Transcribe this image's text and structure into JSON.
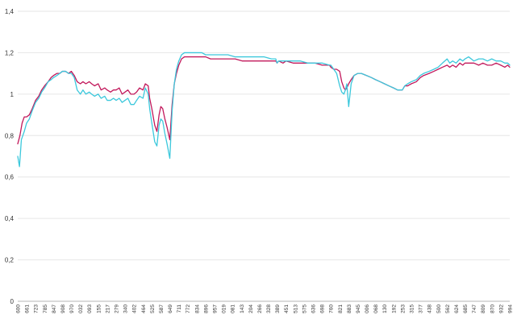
{
  "chart_data": {
    "type": "line",
    "title": "",
    "xlabel": "",
    "ylabel": "",
    "ylim": [
      0,
      1.4
    ],
    "y_ticks": [
      "0",
      "0,2",
      "0,4",
      "0,6",
      "0,8",
      "1",
      "1,2",
      "1,4"
    ],
    "x_ticks": [
      "600",
      "661",
      "723",
      "785",
      "847",
      "908",
      "970",
      "032",
      "093",
      "155",
      "217",
      "279",
      "340",
      "402",
      "464",
      "525",
      "587",
      "649",
      "711",
      "772",
      "834",
      "896",
      "957",
      "019",
      "081",
      "143",
      "204",
      "266",
      "328",
      "389",
      "451",
      "513",
      "575",
      "636",
      "698",
      "760",
      "821",
      "883",
      "945",
      "006",
      "068",
      "130",
      "192",
      "253",
      "315",
      "377",
      "438",
      "500",
      "562",
      "624",
      "685",
      "747",
      "809",
      "870",
      "932",
      "994"
    ],
    "grid": true,
    "legend": "none",
    "series": [
      {
        "color": "#c2185b",
        "x": [
          600,
          615,
          630,
          645,
          661,
          680,
          700,
          723,
          745,
          765,
          785,
          810,
          830,
          847,
          870,
          890,
          908,
          930,
          950,
          970,
          990,
          1010,
          1032,
          1050,
          1070,
          1093,
          1110,
          1130,
          1155,
          1175,
          1200,
          1217,
          1240,
          1260,
          1279,
          1300,
          1320,
          1340,
          1360,
          1380,
          1402,
          1420,
          1440,
          1464,
          1480,
          1500,
          1510,
          1525,
          1545,
          1560,
          1575,
          1587,
          1600,
          1615,
          1630,
          1649,
          1665,
          1680,
          1695,
          1711,
          1730,
          1750,
          1772,
          1800,
          1834,
          1870,
          1896,
          1930,
          1957,
          2000,
          2050,
          2100,
          2150,
          2204,
          2250,
          2300,
          2350,
          2380,
          2389,
          2400,
          2430,
          2451,
          2500,
          2550,
          2600,
          2650,
          2700,
          2750,
          2760,
          2780,
          2800,
          2821,
          2835,
          2850,
          2860,
          2870,
          2883,
          2900,
          2920,
          2945,
          2970,
          3006,
          3040,
          3068,
          3100,
          3130,
          3160,
          3192,
          3220,
          3253,
          3270,
          3290,
          3315,
          3350,
          3377,
          3400,
          3438,
          3470,
          3500,
          3530,
          3562,
          3580,
          3600,
          3624,
          3650,
          3670,
          3685,
          3710,
          3747,
          3780,
          3809,
          3840,
          3870,
          3900,
          3932,
          3960,
          3980,
          3994
        ],
        "y": [
          0.76,
          0.8,
          0.86,
          0.89,
          0.89,
          0.9,
          0.93,
          0.97,
          0.99,
          1.02,
          1.04,
          1.06,
          1.08,
          1.09,
          1.1,
          1.1,
          1.11,
          1.11,
          1.1,
          1.11,
          1.09,
          1.06,
          1.05,
          1.06,
          1.05,
          1.06,
          1.05,
          1.04,
          1.05,
          1.02,
          1.03,
          1.02,
          1.01,
          1.02,
          1.02,
          1.03,
          1.0,
          1.01,
          1.02,
          1.0,
          1.0,
          1.01,
          1.03,
          1.02,
          1.05,
          1.04,
          0.98,
          0.93,
          0.85,
          0.82,
          0.9,
          0.94,
          0.93,
          0.88,
          0.84,
          0.78,
          0.95,
          1.05,
          1.1,
          1.14,
          1.17,
          1.18,
          1.18,
          1.18,
          1.18,
          1.18,
          1.18,
          1.17,
          1.17,
          1.17,
          1.17,
          1.17,
          1.16,
          1.16,
          1.16,
          1.16,
          1.16,
          1.16,
          1.15,
          1.16,
          1.15,
          1.16,
          1.15,
          1.15,
          1.15,
          1.15,
          1.14,
          1.14,
          1.13,
          1.12,
          1.12,
          1.11,
          1.06,
          1.03,
          1.02,
          1.03,
          1.05,
          1.07,
          1.09,
          1.1,
          1.1,
          1.09,
          1.08,
          1.07,
          1.06,
          1.05,
          1.04,
          1.03,
          1.02,
          1.02,
          1.04,
          1.04,
          1.05,
          1.06,
          1.08,
          1.09,
          1.1,
          1.11,
          1.12,
          1.13,
          1.14,
          1.13,
          1.14,
          1.13,
          1.15,
          1.14,
          1.15,
          1.15,
          1.15,
          1.14,
          1.15,
          1.14,
          1.14,
          1.15,
          1.14,
          1.13,
          1.14,
          1.13
        ]
      },
      {
        "color": "#3cc8dc",
        "x": [
          600,
          612,
          625,
          645,
          661,
          680,
          700,
          723,
          745,
          765,
          785,
          810,
          830,
          847,
          870,
          890,
          908,
          930,
          950,
          970,
          990,
          1010,
          1032,
          1050,
          1070,
          1093,
          1110,
          1130,
          1155,
          1175,
          1200,
          1217,
          1240,
          1260,
          1279,
          1300,
          1320,
          1340,
          1360,
          1380,
          1402,
          1420,
          1440,
          1464,
          1480,
          1500,
          1510,
          1525,
          1545,
          1560,
          1575,
          1587,
          1600,
          1615,
          1630,
          1649,
          1665,
          1680,
          1695,
          1711,
          1730,
          1750,
          1772,
          1800,
          1834,
          1870,
          1896,
          1930,
          1957,
          2000,
          2050,
          2100,
          2150,
          2204,
          2250,
          2300,
          2350,
          2380,
          2389,
          2400,
          2430,
          2451,
          2500,
          2550,
          2600,
          2650,
          2700,
          2750,
          2760,
          2780,
          2800,
          2821,
          2835,
          2850,
          2860,
          2870,
          2883,
          2900,
          2920,
          2945,
          2970,
          3006,
          3040,
          3068,
          3100,
          3130,
          3160,
          3192,
          3220,
          3253,
          3270,
          3290,
          3315,
          3350,
          3377,
          3400,
          3438,
          3470,
          3500,
          3530,
          3562,
          3580,
          3600,
          3624,
          3650,
          3670,
          3685,
          3710,
          3747,
          3780,
          3809,
          3840,
          3870,
          3900,
          3932,
          3960,
          3980,
          3994
        ],
        "y": [
          0.7,
          0.65,
          0.78,
          0.82,
          0.86,
          0.88,
          0.92,
          0.96,
          0.98,
          1.01,
          1.03,
          1.06,
          1.07,
          1.08,
          1.09,
          1.1,
          1.11,
          1.11,
          1.1,
          1.1,
          1.08,
          1.02,
          1.0,
          1.02,
          1.0,
          1.01,
          1.0,
          0.99,
          1.0,
          0.98,
          0.99,
          0.97,
          0.97,
          0.98,
          0.97,
          0.98,
          0.96,
          0.97,
          0.98,
          0.95,
          0.95,
          0.97,
          0.99,
          0.98,
          1.03,
          1.0,
          0.93,
          0.86,
          0.77,
          0.75,
          0.85,
          0.88,
          0.87,
          0.81,
          0.76,
          0.69,
          0.92,
          1.05,
          1.12,
          1.16,
          1.19,
          1.2,
          1.2,
          1.2,
          1.2,
          1.2,
          1.19,
          1.19,
          1.19,
          1.19,
          1.19,
          1.18,
          1.18,
          1.18,
          1.18,
          1.18,
          1.17,
          1.17,
          1.15,
          1.16,
          1.16,
          1.16,
          1.16,
          1.16,
          1.15,
          1.15,
          1.15,
          1.14,
          1.14,
          1.12,
          1.1,
          1.04,
          1.01,
          1.0,
          1.02,
          1.05,
          0.94,
          1.05,
          1.09,
          1.1,
          1.1,
          1.09,
          1.08,
          1.07,
          1.06,
          1.05,
          1.04,
          1.03,
          1.02,
          1.02,
          1.04,
          1.05,
          1.06,
          1.07,
          1.09,
          1.1,
          1.11,
          1.12,
          1.13,
          1.15,
          1.17,
          1.15,
          1.16,
          1.15,
          1.17,
          1.16,
          1.17,
          1.18,
          1.16,
          1.17,
          1.17,
          1.16,
          1.17,
          1.16,
          1.16,
          1.15,
          1.15,
          1.14
        ]
      }
    ]
  }
}
